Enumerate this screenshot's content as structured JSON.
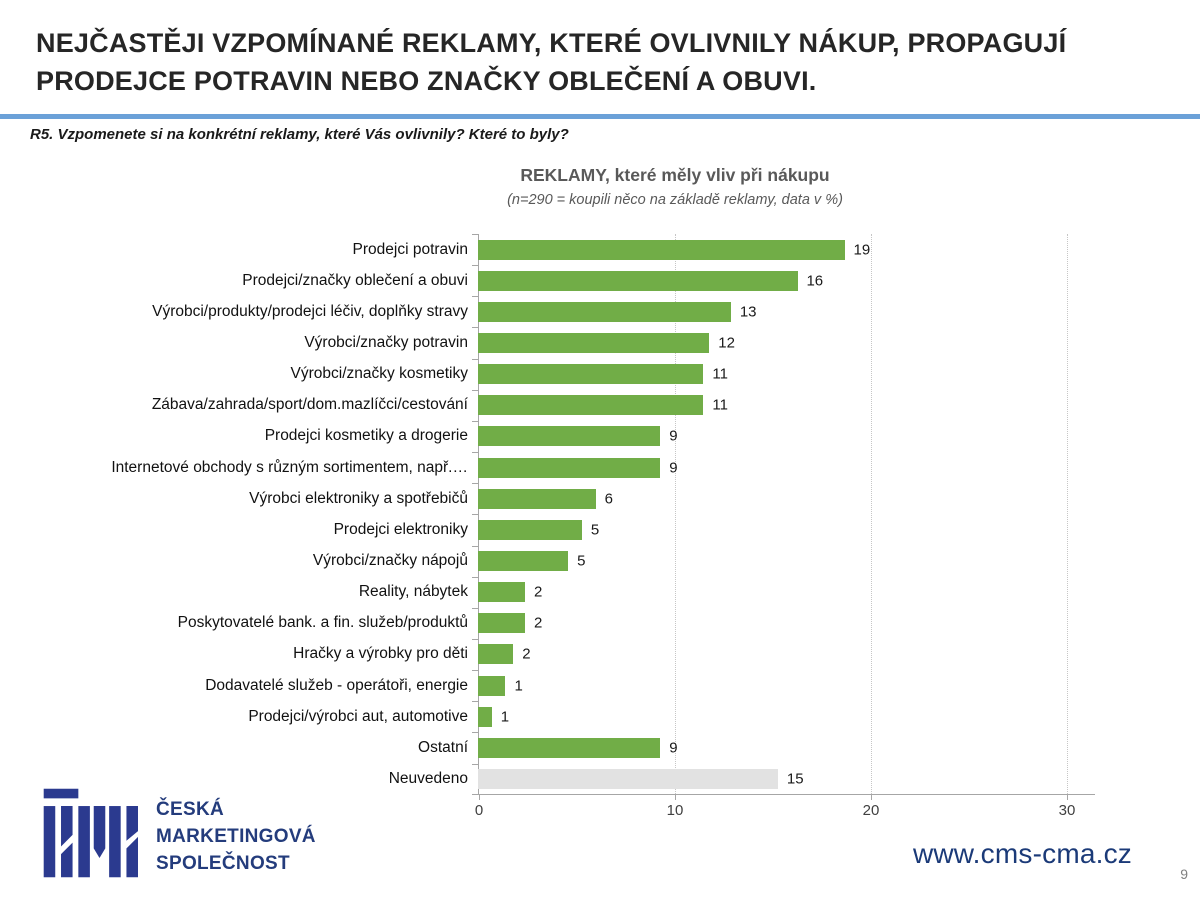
{
  "header": {
    "title_line1": "NEJČASTĚJI VZPOMÍNANÉ REKLAMY, KTERÉ OVLIVNILY NÁKUP, PROPAGUJÍ",
    "title_line2": "PRODEJCE POTRAVIN NEBO ZNAČKY OBLEČENÍ A OBUVI.",
    "question": "R5. Vzpomenete si na konkrétní reklamy, které Vás ovlivnily? Které to byly?"
  },
  "chart_data": {
    "type": "bar",
    "orientation": "horizontal",
    "title": "REKLAMY, které měly vliv při nákupu",
    "subtitle": "(n=290 = koupili něco na základě reklamy, data v %)",
    "unit": "%",
    "categories": [
      "Prodejci potravin",
      "Prodejci/značky oblečení a obuvi",
      "Výrobci/produkty/prodejci léčiv, doplňky stravy",
      "Výrobci/značky potravin",
      "Výrobci/značky kosmetiky",
      "Zábava/zahrada/sport/dom.mazlíčci/cestování",
      "Prodejci kosmetiky a drogerie",
      "Internetové obchody s různým sortimentem, např.…",
      "Výrobci elektroniky a spotřebičů",
      "Prodejci elektroniky",
      "Výrobci/značky nápojů",
      "Reality, nábytek",
      "Poskytovatelé bank. a fin. služeb/produktů",
      "Hračky a výrobky pro děti",
      "Dodavatelé služeb - operátoři, energie",
      "Prodejci/výrobci aut, automotive",
      "Ostatní",
      "Neuvedeno"
    ],
    "values": [
      19,
      16,
      13,
      12,
      11,
      11,
      9,
      9,
      6,
      5,
      5,
      2,
      2,
      2,
      1,
      1,
      9,
      15
    ],
    "bar_lengths": [
      18.7,
      16.3,
      12.9,
      11.8,
      11.5,
      11.5,
      9.3,
      9.3,
      6.0,
      5.3,
      4.6,
      2.4,
      2.4,
      1.8,
      1.4,
      0.7,
      9.3,
      15.3
    ],
    "x_ticks": [
      0,
      10,
      20,
      30
    ],
    "xlim": [
      0,
      31.5
    ],
    "grid": "vertical dotted lines at x ticks",
    "legend": "none",
    "bar_color": "#71ad47",
    "neutral_bar_color": "#e2e2e2",
    "neutral_categories": [
      "Neuvedeno"
    ]
  },
  "footer": {
    "logo_monogram": "ČMS",
    "logo_lines": [
      "ČESKÁ",
      "MARKETINGOVÁ",
      "SPOLEČNOST"
    ],
    "website": "www.cms-cma.cz",
    "page_number": "9"
  },
  "colors": {
    "accent_blue_divider": "#6ba1d8",
    "bar_green": "#71ad47",
    "bar_gray": "#e2e2e2",
    "navy_brand": "#243c7c",
    "title_text": "#262626",
    "chart_text": "#595959"
  }
}
